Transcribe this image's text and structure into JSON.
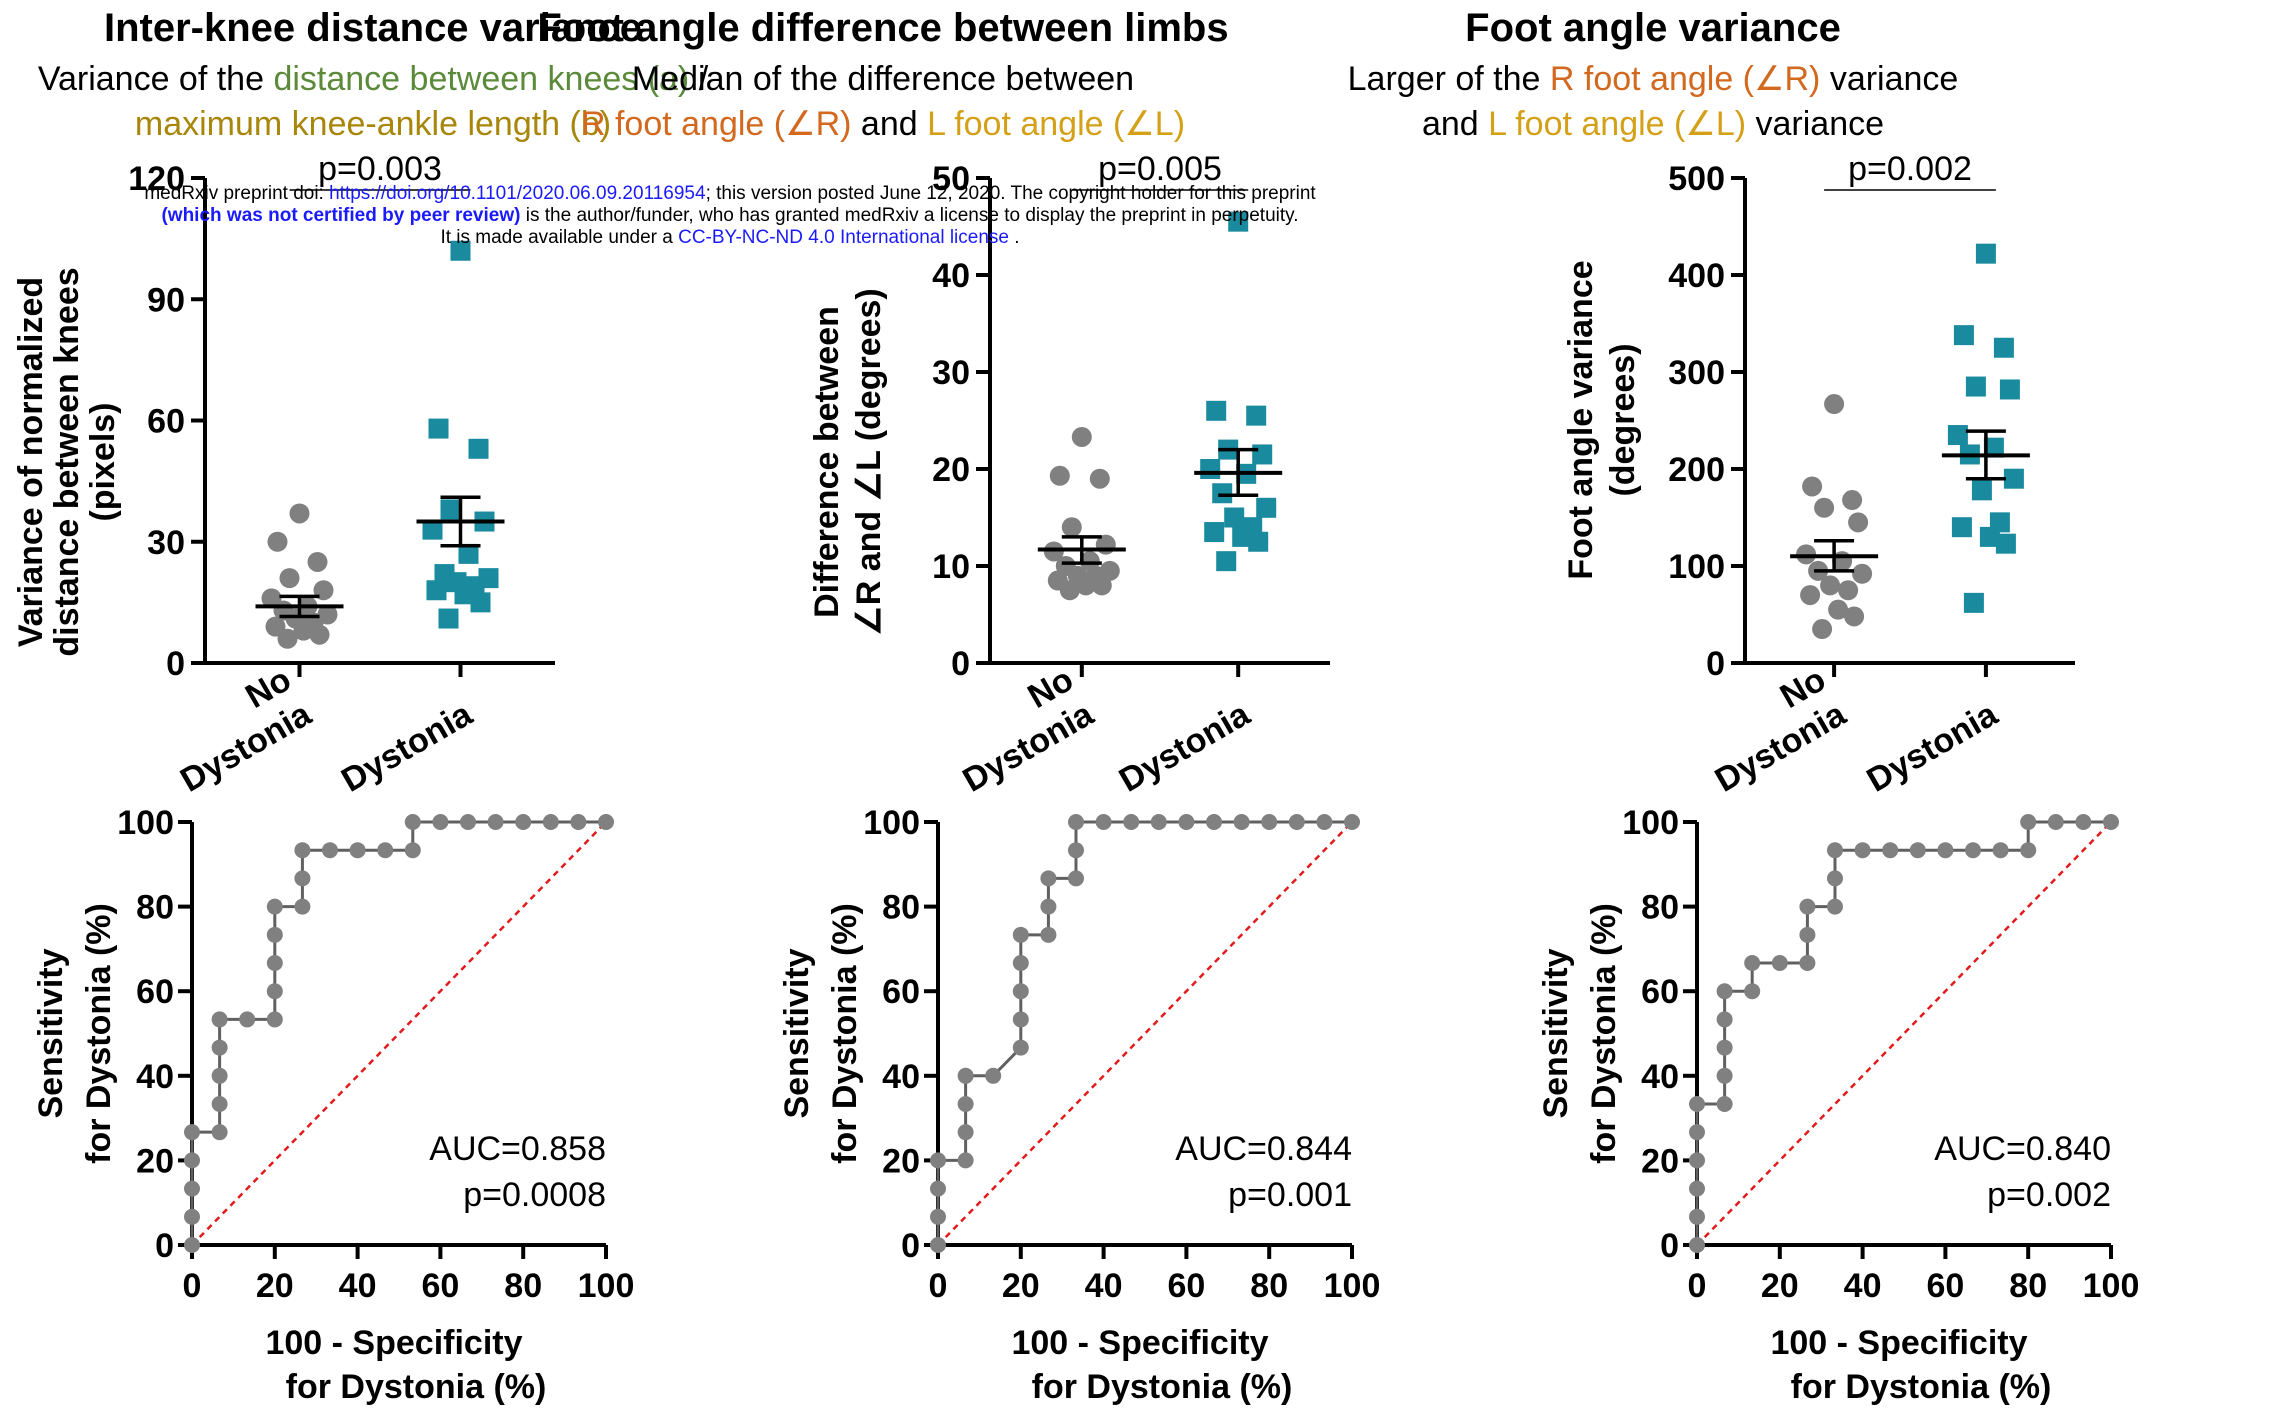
{
  "panels": [
    {
      "title": "Inter-knee distance variance",
      "subtitle_line1": [
        {
          "text": "Variance of the ",
          "color": "#000000"
        },
        {
          "text": "distance between knees (a)",
          "color": "#5b8a3a"
        },
        {
          "text": " /",
          "color": "#000000"
        }
      ],
      "subtitle_line2": [
        {
          "text": "maximum knee-ankle length (b)",
          "color": "#a8860a"
        }
      ]
    },
    {
      "title": "Foot angle difference between limbs",
      "subtitle_line1": [
        {
          "text": "Median of the difference between",
          "color": "#000000"
        }
      ],
      "subtitle_line2": [
        {
          "text": "R foot angle (∠R)",
          "color": "#d2691e"
        },
        {
          "text": " and ",
          "color": "#000000"
        },
        {
          "text": "L foot angle (∠L)",
          "color": "#d4a017"
        }
      ]
    },
    {
      "title": "Foot angle variance",
      "subtitle_line1": [
        {
          "text": "Larger of the ",
          "color": "#000000"
        },
        {
          "text": "R foot angle (∠R)",
          "color": "#d2691e"
        },
        {
          "text": " variance",
          "color": "#000000"
        }
      ],
      "subtitle_line2": [
        {
          "text": "and ",
          "color": "#000000"
        },
        {
          "text": "L foot angle (∠L)",
          "color": "#d4a017"
        },
        {
          "text": " variance",
          "color": "#000000"
        }
      ]
    }
  ],
  "notice": {
    "line1_prefix": "medRxiv preprint doi: ",
    "line1_link": "https://doi.org/10.1101/2020.06.09.20116954",
    "line1_suffix": "; this version posted June 12, 2020. The copyright holder for this preprint",
    "line2_bold": "(which was not certified by peer review)",
    "line2_suffix": " is the author/funder, who has granted medRxiv a license to display the preprint in perpetuity.",
    "line3_prefix": "It is made available under a ",
    "line3_link": "CC-BY-NC-ND 4.0 International license",
    "line3_suffix": " ."
  },
  "colors": {
    "no_dystonia": "#808080",
    "dystonia": "#1a8a9e",
    "reference_line": "#e31a1c",
    "axis": "#000000"
  },
  "chart_data": [
    {
      "type": "scatter",
      "ylabel": "Variance of normalized distance between knees (pixels)",
      "ylabel_lines": [
        "Variance of normalized",
        "distance between knees",
        "(pixels)"
      ],
      "categories": [
        "No Dystonia",
        "Dystonia"
      ],
      "category_lines": [
        [
          "No",
          "Dystonia"
        ],
        [
          "Dystonia"
        ]
      ],
      "ylim": [
        0,
        120
      ],
      "yticks": [
        0,
        30,
        60,
        90,
        120
      ],
      "pvalue": "p=0.003",
      "series": [
        {
          "name": "No Dystonia",
          "marker": "circle",
          "values": [
            37,
            30,
            25,
            21,
            18,
            16,
            14,
            13,
            12,
            11,
            10,
            9,
            8,
            7,
            6
          ],
          "mean": 14,
          "sem_low": 11.5,
          "sem_high": 16.5
        },
        {
          "name": "Dystonia",
          "marker": "square",
          "values": [
            102,
            58,
            53,
            38,
            35,
            33,
            27,
            22,
            21,
            20,
            19,
            18,
            17,
            15,
            11
          ],
          "mean": 35,
          "sem_low": 29,
          "sem_high": 41
        }
      ]
    },
    {
      "type": "scatter",
      "ylabel": "Difference between ∠R and ∠L (degrees)",
      "ylabel_lines": [
        "Difference between",
        "∠R and ∠L (degrees)"
      ],
      "categories": [
        "No Dystonia",
        "Dystonia"
      ],
      "category_lines": [
        [
          "No",
          "Dystonia"
        ],
        [
          "Dystonia"
        ]
      ],
      "ylim": [
        0,
        50
      ],
      "yticks": [
        0,
        10,
        20,
        30,
        40,
        50
      ],
      "pvalue": "p=0.005",
      "series": [
        {
          "name": "No Dystonia",
          "marker": "circle",
          "values": [
            23.3,
            19.3,
            19,
            14,
            12.2,
            11.5,
            10.5,
            10,
            9.5,
            9,
            9,
            8.5,
            8,
            8,
            7.5
          ],
          "mean": 11.7,
          "sem_low": 10.3,
          "sem_high": 13
        },
        {
          "name": "Dystonia",
          "marker": "square",
          "values": [
            45.5,
            26,
            25.5,
            22,
            21.5,
            20,
            19.5,
            17.5,
            16,
            15,
            14,
            13.5,
            13,
            12.5,
            10.5
          ],
          "mean": 19.6,
          "sem_low": 17.3,
          "sem_high": 22
        }
      ]
    },
    {
      "type": "scatter",
      "ylabel": "Foot angle variance (degrees)",
      "ylabel_lines": [
        "Foot angle variance",
        "(degrees)"
      ],
      "categories": [
        "No Dystonia",
        "Dystonia"
      ],
      "category_lines": [
        [
          "No",
          "Dystonia"
        ],
        [
          "Dystonia"
        ]
      ],
      "ylim": [
        0,
        500
      ],
      "yticks": [
        0,
        100,
        200,
        300,
        400,
        500
      ],
      "pvalue": "p=0.002",
      "series": [
        {
          "name": "No Dystonia",
          "marker": "circle",
          "values": [
            267,
            182,
            168,
            160,
            145,
            112,
            105,
            95,
            92,
            80,
            75,
            70,
            55,
            48,
            35
          ],
          "mean": 110,
          "sem_low": 95,
          "sem_high": 126
        },
        {
          "name": "Dystonia",
          "marker": "square",
          "values": [
            422,
            338,
            325,
            285,
            282,
            235,
            222,
            215,
            190,
            178,
            145,
            140,
            130,
            123,
            62
          ],
          "mean": 214,
          "sem_low": 190,
          "sem_high": 239
        }
      ]
    },
    {
      "type": "line",
      "xlabel": "100 - Specificity for Dystonia (%)",
      "xlabel_lines": [
        "100 - Specificity",
        "for Dystonia (%)"
      ],
      "ylabel": "Sensitivity for Dystonia (%)",
      "ylabel_lines": [
        "Sensitivity",
        "for Dystonia (%)"
      ],
      "xlim": [
        0,
        100
      ],
      "ylim": [
        0,
        100
      ],
      "xticks": [
        0,
        20,
        40,
        60,
        80,
        100
      ],
      "yticks": [
        0,
        20,
        40,
        60,
        80,
        100
      ],
      "annotations": [
        "AUC=0.858",
        "p=0.0008"
      ],
      "x": [
        0,
        0,
        0,
        0,
        0,
        6.67,
        6.67,
        6.67,
        6.67,
        6.67,
        13.33,
        20,
        20,
        20,
        20,
        20,
        26.67,
        26.67,
        26.67,
        33.33,
        40,
        46.67,
        53.33,
        53.33,
        60,
        66.67,
        73.33,
        80,
        86.67,
        93.33,
        100
      ],
      "y": [
        0,
        6.67,
        13.33,
        20,
        26.67,
        26.67,
        33.33,
        40,
        46.67,
        53.33,
        53.33,
        53.33,
        60,
        66.67,
        73.33,
        80,
        80,
        86.67,
        93.33,
        93.33,
        93.33,
        93.33,
        93.33,
        100,
        100,
        100,
        100,
        100,
        100,
        100,
        100
      ]
    },
    {
      "type": "line",
      "xlabel": "100 - Specificity for Dystonia (%)",
      "xlabel_lines": [
        "100 - Specificity",
        "for Dystonia (%)"
      ],
      "ylabel": "Sensitivity for Dystonia (%)",
      "ylabel_lines": [
        "Sensitivity",
        "for Dystonia (%)"
      ],
      "xlim": [
        0,
        100
      ],
      "ylim": [
        0,
        100
      ],
      "xticks": [
        0,
        20,
        40,
        60,
        80,
        100
      ],
      "yticks": [
        0,
        20,
        40,
        60,
        80,
        100
      ],
      "annotations": [
        "AUC=0.844",
        "p=0.001"
      ],
      "x": [
        0,
        0,
        0,
        0,
        6.67,
        6.67,
        6.67,
        6.67,
        13.33,
        20,
        20,
        20,
        20,
        20,
        26.67,
        26.67,
        26.67,
        33.33,
        33.33,
        33.33,
        40,
        46.67,
        53.33,
        60,
        66.67,
        73.33,
        80,
        86.67,
        93.33,
        100
      ],
      "y": [
        0,
        6.67,
        13.33,
        20,
        20,
        26.67,
        33.33,
        40,
        40,
        46.67,
        53.33,
        60,
        66.67,
        73.33,
        73.33,
        80,
        86.67,
        86.67,
        93.33,
        100,
        100,
        100,
        100,
        100,
        100,
        100,
        100,
        100,
        100,
        100
      ]
    },
    {
      "type": "line",
      "xlabel": "100 - Specificity for Dystonia (%)",
      "xlabel_lines": [
        "100 - Specificity",
        "for Dystonia (%)"
      ],
      "ylabel": "Sensitivity for Dystonia (%)",
      "ylabel_lines": [
        "Sensitivity",
        "for Dystonia (%)"
      ],
      "xlim": [
        0,
        100
      ],
      "ylim": [
        0,
        100
      ],
      "xticks": [
        0,
        20,
        40,
        60,
        80,
        100
      ],
      "yticks": [
        0,
        20,
        40,
        60,
        80,
        100
      ],
      "annotations": [
        "AUC=0.840",
        "p=0.002"
      ],
      "x": [
        0,
        0,
        0,
        0,
        0,
        0,
        6.67,
        6.67,
        6.67,
        6.67,
        6.67,
        13.33,
        13.33,
        20,
        26.67,
        26.67,
        26.67,
        33.33,
        33.33,
        33.33,
        40,
        46.67,
        53.33,
        60,
        66.67,
        73.33,
        80,
        80,
        86.67,
        93.33,
        100
      ],
      "y": [
        0,
        6.67,
        13.33,
        20,
        26.67,
        33.33,
        33.33,
        40,
        46.67,
        53.33,
        60,
        60,
        66.67,
        66.67,
        66.67,
        73.33,
        80,
        80,
        86.67,
        93.33,
        93.33,
        93.33,
        93.33,
        93.33,
        93.33,
        93.33,
        93.33,
        100,
        100,
        100,
        100
      ]
    }
  ]
}
